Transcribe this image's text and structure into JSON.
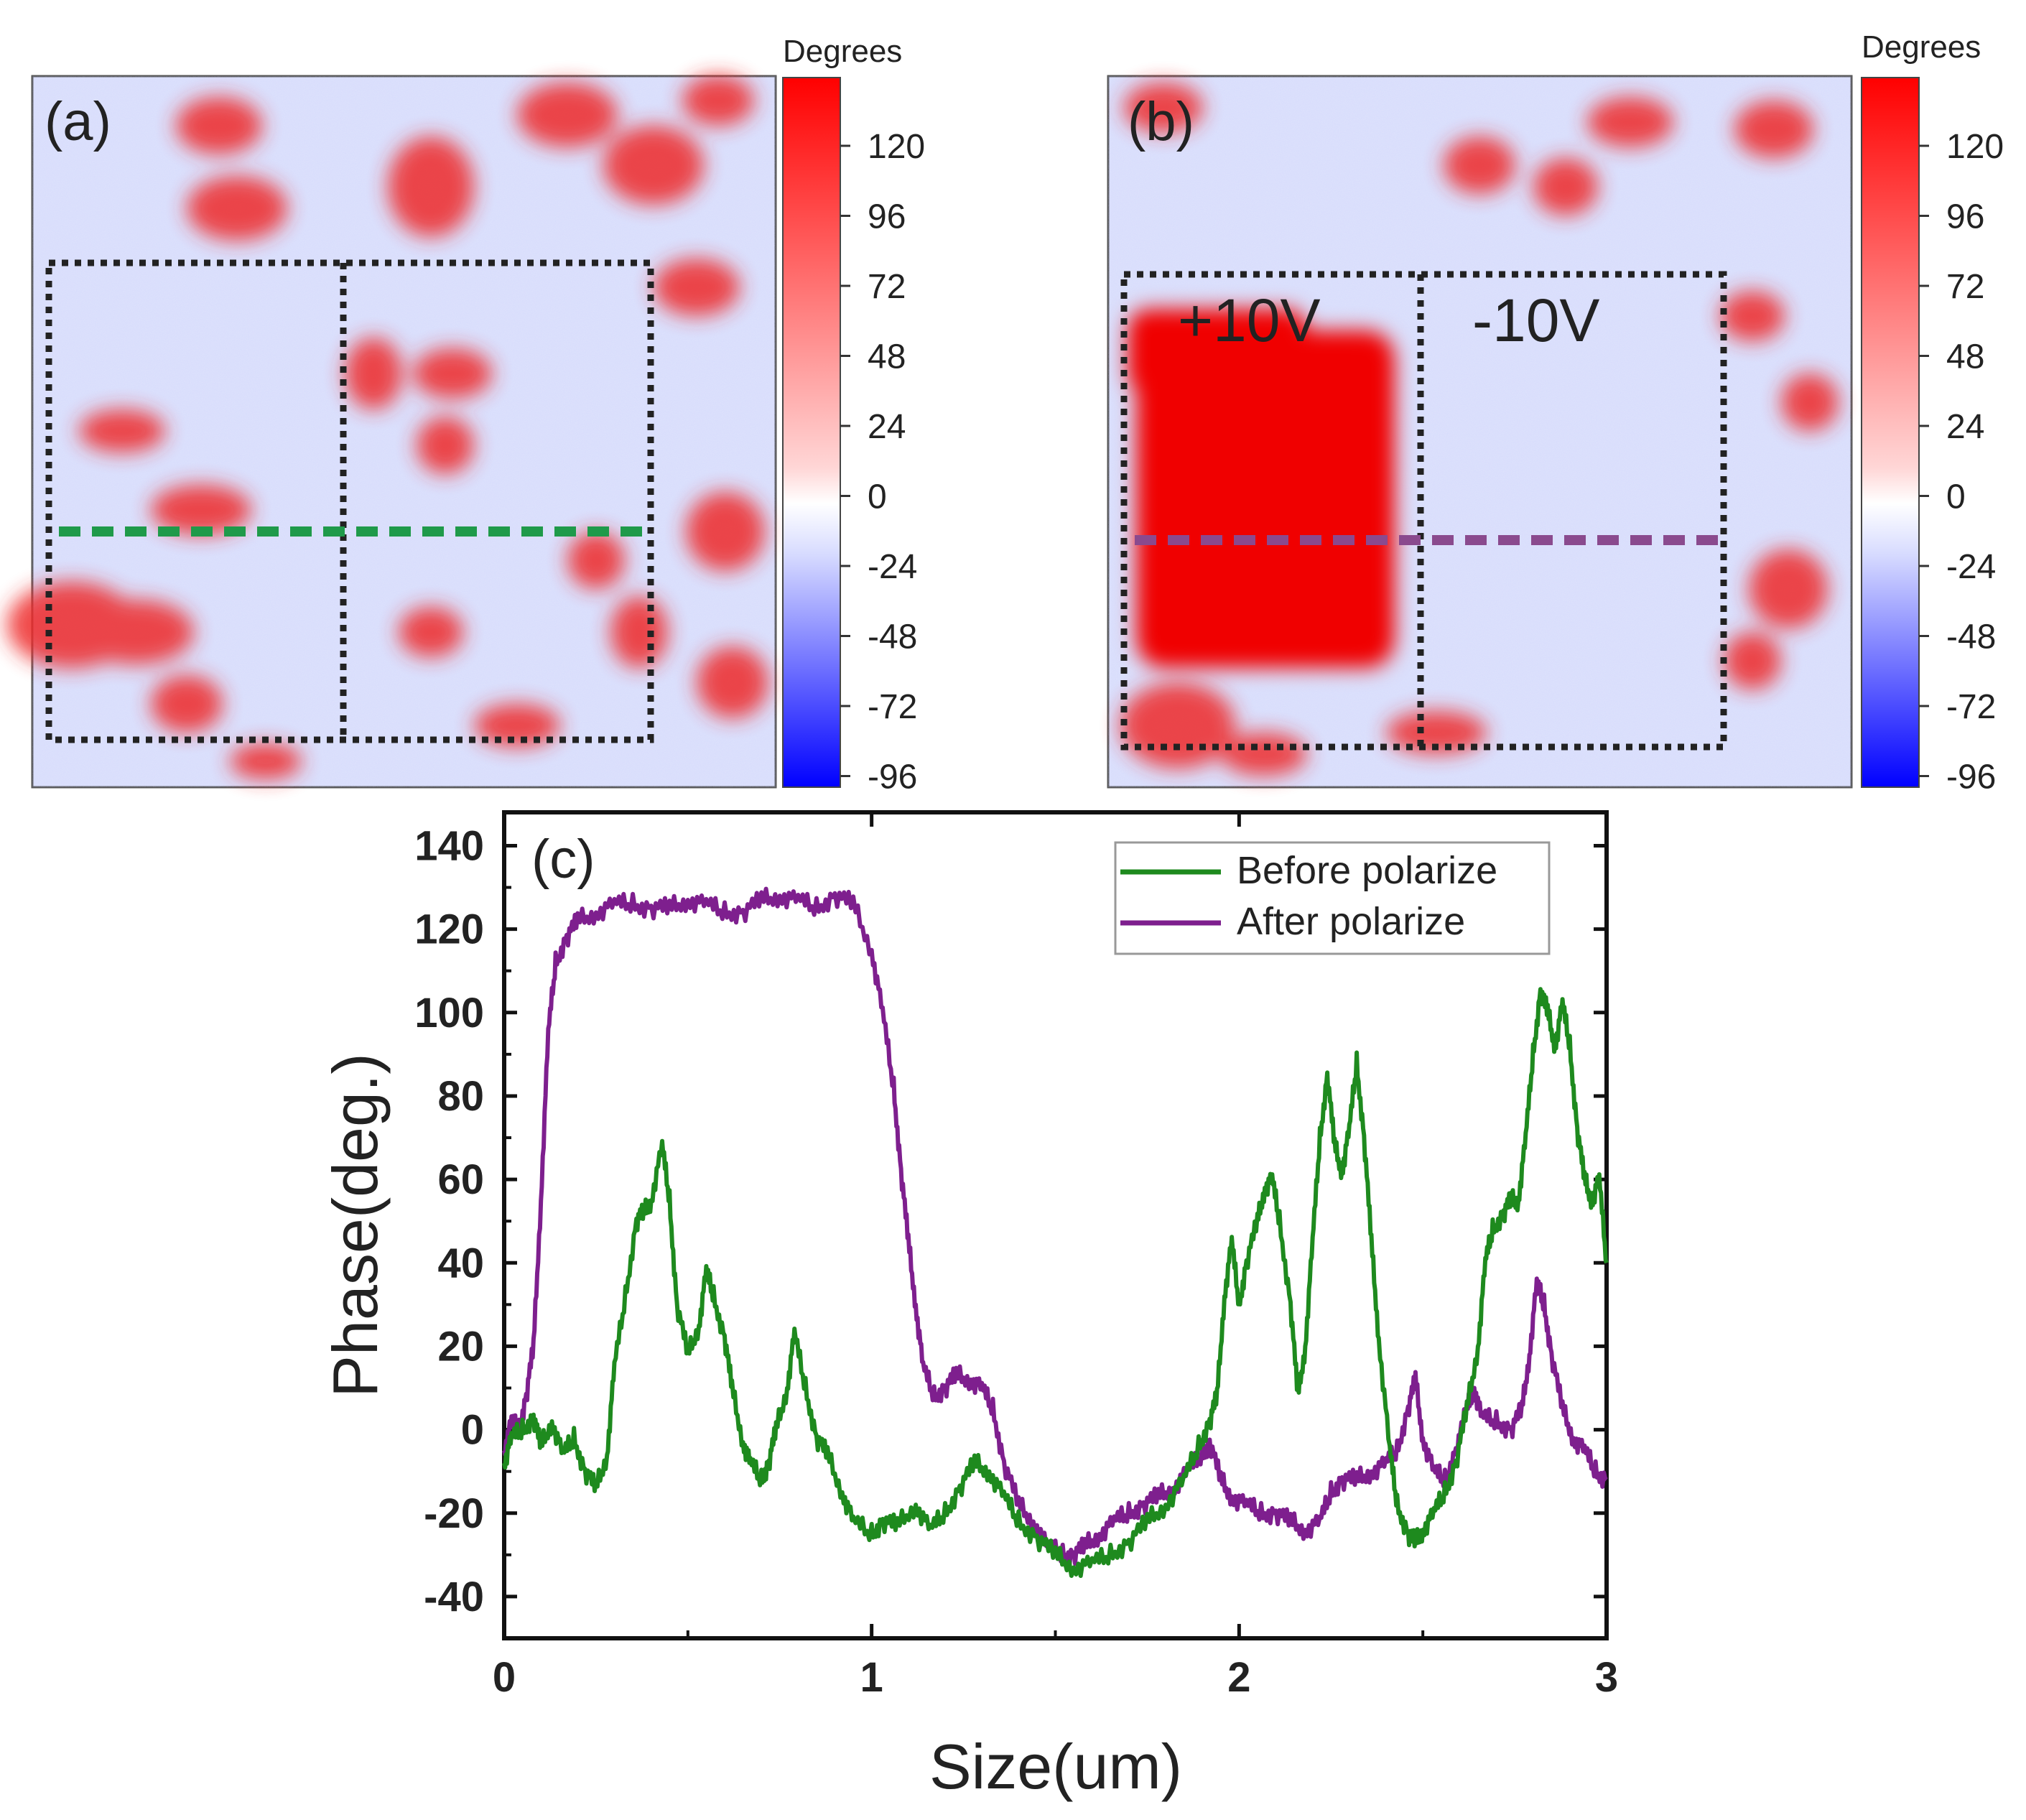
{
  "maps": {
    "a": {
      "label": "(a)",
      "colorbar_title": "Degrees",
      "colorbar_ticks": [
        "120",
        "96",
        "72",
        "48",
        "24",
        "0",
        "-24",
        "-48",
        "-72",
        "-96"
      ],
      "line_color": "#1f9a4a"
    },
    "b": {
      "label": "(b)",
      "colorbar_title": "Degrees",
      "colorbar_ticks": [
        "120",
        "96",
        "72",
        "48",
        "24",
        "0",
        "-24",
        "-48",
        "-72",
        "-96"
      ],
      "region_labels": [
        "+10V",
        "-10V"
      ],
      "line_color": "#8a4a8e"
    },
    "colors": {
      "positive": "#ff0000",
      "zero": "#ffffff",
      "negative": "#0000ff"
    }
  },
  "chart_data": {
    "type": "line",
    "panel_label": "(c)",
    "title": "",
    "xlabel": "Size(um)",
    "ylabel": "Phase(deg.)",
    "xlim": [
      0,
      3
    ],
    "ylim": [
      -50,
      148
    ],
    "xticks": [
      0,
      1,
      2,
      3
    ],
    "yticks": [
      -40,
      -20,
      0,
      20,
      40,
      60,
      80,
      100,
      120,
      140
    ],
    "legend_position": "top-right",
    "series": [
      {
        "name": "Before polarize",
        "color": "#1e8a1e",
        "points": [
          [
            0,
            -8
          ],
          [
            0.02,
            -2
          ],
          [
            0.05,
            0
          ],
          [
            0.08,
            3
          ],
          [
            0.1,
            -4
          ],
          [
            0.13,
            2
          ],
          [
            0.16,
            -6
          ],
          [
            0.19,
            -2
          ],
          [
            0.22,
            -10
          ],
          [
            0.25,
            -14
          ],
          [
            0.28,
            -6
          ],
          [
            0.3,
            15
          ],
          [
            0.33,
            32
          ],
          [
            0.36,
            50
          ],
          [
            0.38,
            52
          ],
          [
            0.4,
            55
          ],
          [
            0.43,
            68
          ],
          [
            0.45,
            55
          ],
          [
            0.47,
            30
          ],
          [
            0.5,
            18
          ],
          [
            0.53,
            25
          ],
          [
            0.55,
            38
          ],
          [
            0.57,
            32
          ],
          [
            0.6,
            22
          ],
          [
            0.62,
            10
          ],
          [
            0.65,
            -3
          ],
          [
            0.67,
            -8
          ],
          [
            0.7,
            -12
          ],
          [
            0.72,
            -8
          ],
          [
            0.74,
            0
          ],
          [
            0.77,
            10
          ],
          [
            0.79,
            23
          ],
          [
            0.82,
            10
          ],
          [
            0.85,
            -2
          ],
          [
            0.88,
            -6
          ],
          [
            0.92,
            -15
          ],
          [
            0.95,
            -22
          ],
          [
            1.0,
            -25
          ],
          [
            1.03,
            -22
          ],
          [
            1.07,
            -23
          ],
          [
            1.12,
            -18
          ],
          [
            1.16,
            -24
          ],
          [
            1.2,
            -20
          ],
          [
            1.24,
            -14
          ],
          [
            1.28,
            -8
          ],
          [
            1.32,
            -10
          ],
          [
            1.36,
            -16
          ],
          [
            1.4,
            -22
          ],
          [
            1.45,
            -26
          ],
          [
            1.5,
            -30
          ],
          [
            1.55,
            -33
          ],
          [
            1.6,
            -32
          ],
          [
            1.65,
            -30
          ],
          [
            1.7,
            -27
          ],
          [
            1.75,
            -22
          ],
          [
            1.8,
            -18
          ],
          [
            1.85,
            -12
          ],
          [
            1.89,
            -4
          ],
          [
            1.92,
            2
          ],
          [
            1.94,
            8
          ],
          [
            1.96,
            32
          ],
          [
            1.98,
            45
          ],
          [
            2.0,
            30
          ],
          [
            2.02,
            40
          ],
          [
            2.05,
            50
          ],
          [
            2.07,
            58
          ],
          [
            2.09,
            60
          ],
          [
            2.11,
            50
          ],
          [
            2.14,
            30
          ],
          [
            2.16,
            8
          ],
          [
            2.18,
            20
          ],
          [
            2.2,
            45
          ],
          [
            2.22,
            70
          ],
          [
            2.24,
            85
          ],
          [
            2.26,
            68
          ],
          [
            2.28,
            62
          ],
          [
            2.3,
            72
          ],
          [
            2.32,
            88
          ],
          [
            2.34,
            70
          ],
          [
            2.36,
            45
          ],
          [
            2.38,
            22
          ],
          [
            2.41,
            -5
          ],
          [
            2.43,
            -18
          ],
          [
            2.46,
            -25
          ],
          [
            2.48,
            -27
          ],
          [
            2.5,
            -24
          ],
          [
            2.53,
            -20
          ],
          [
            2.56,
            -15
          ],
          [
            2.59,
            -8
          ],
          [
            2.62,
            5
          ],
          [
            2.65,
            20
          ],
          [
            2.67,
            40
          ],
          [
            2.69,
            48
          ],
          [
            2.72,
            52
          ],
          [
            2.74,
            55
          ],
          [
            2.76,
            55
          ],
          [
            2.78,
            70
          ],
          [
            2.8,
            90
          ],
          [
            2.82,
            105
          ],
          [
            2.84,
            100
          ],
          [
            2.86,
            92
          ],
          [
            2.88,
            102
          ],
          [
            2.9,
            92
          ],
          [
            2.92,
            72
          ],
          [
            2.94,
            60
          ],
          [
            2.96,
            55
          ],
          [
            2.98,
            60
          ],
          [
            3.0,
            40
          ]
        ]
      },
      {
        "name": "After polarize",
        "color": "#7e1f8e",
        "points": [
          [
            0,
            -5
          ],
          [
            0.02,
            2
          ],
          [
            0.04,
            0
          ],
          [
            0.06,
            8
          ],
          [
            0.08,
            20
          ],
          [
            0.1,
            55
          ],
          [
            0.12,
            95
          ],
          [
            0.14,
            112
          ],
          [
            0.17,
            118
          ],
          [
            0.2,
            122
          ],
          [
            0.25,
            124
          ],
          [
            0.3,
            126
          ],
          [
            0.35,
            126
          ],
          [
            0.4,
            125
          ],
          [
            0.45,
            125
          ],
          [
            0.5,
            127
          ],
          [
            0.55,
            126
          ],
          [
            0.6,
            124
          ],
          [
            0.65,
            124
          ],
          [
            0.7,
            127
          ],
          [
            0.75,
            128
          ],
          [
            0.8,
            127
          ],
          [
            0.85,
            125
          ],
          [
            0.9,
            128
          ],
          [
            0.95,
            126
          ],
          [
            1.0,
            115
          ],
          [
            1.03,
            100
          ],
          [
            1.06,
            82
          ],
          [
            1.08,
            62
          ],
          [
            1.1,
            45
          ],
          [
            1.12,
            30
          ],
          [
            1.14,
            15
          ],
          [
            1.17,
            8
          ],
          [
            1.2,
            10
          ],
          [
            1.23,
            13
          ],
          [
            1.27,
            12
          ],
          [
            1.3,
            10
          ],
          [
            1.33,
            5
          ],
          [
            1.36,
            -8
          ],
          [
            1.4,
            -18
          ],
          [
            1.44,
            -22
          ],
          [
            1.48,
            -28
          ],
          [
            1.52,
            -30
          ],
          [
            1.55,
            -30
          ],
          [
            1.58,
            -28
          ],
          [
            1.62,
            -25
          ],
          [
            1.66,
            -22
          ],
          [
            1.7,
            -20
          ],
          [
            1.74,
            -18
          ],
          [
            1.78,
            -16
          ],
          [
            1.82,
            -14
          ],
          [
            1.86,
            -10
          ],
          [
            1.9,
            -6
          ],
          [
            1.92,
            -3
          ],
          [
            1.95,
            -12
          ],
          [
            1.98,
            -16
          ],
          [
            2.02,
            -18
          ],
          [
            2.06,
            -20
          ],
          [
            2.1,
            -20
          ],
          [
            2.14,
            -22
          ],
          [
            2.18,
            -24
          ],
          [
            2.22,
            -22
          ],
          [
            2.25,
            -15
          ],
          [
            2.28,
            -12
          ],
          [
            2.32,
            -12
          ],
          [
            2.36,
            -10
          ],
          [
            2.4,
            -8
          ],
          [
            2.43,
            -5
          ],
          [
            2.46,
            5
          ],
          [
            2.48,
            12
          ],
          [
            2.5,
            -2
          ],
          [
            2.53,
            -10
          ],
          [
            2.56,
            -12
          ],
          [
            2.59,
            -5
          ],
          [
            2.62,
            5
          ],
          [
            2.64,
            10
          ],
          [
            2.66,
            3
          ],
          [
            2.7,
            2
          ],
          [
            2.74,
            0
          ],
          [
            2.77,
            5
          ],
          [
            2.79,
            18
          ],
          [
            2.81,
            35
          ],
          [
            2.83,
            30
          ],
          [
            2.85,
            18
          ],
          [
            2.88,
            5
          ],
          [
            2.91,
            -2
          ],
          [
            2.94,
            -5
          ],
          [
            2.97,
            -10
          ],
          [
            3.0,
            -12
          ]
        ]
      }
    ]
  }
}
